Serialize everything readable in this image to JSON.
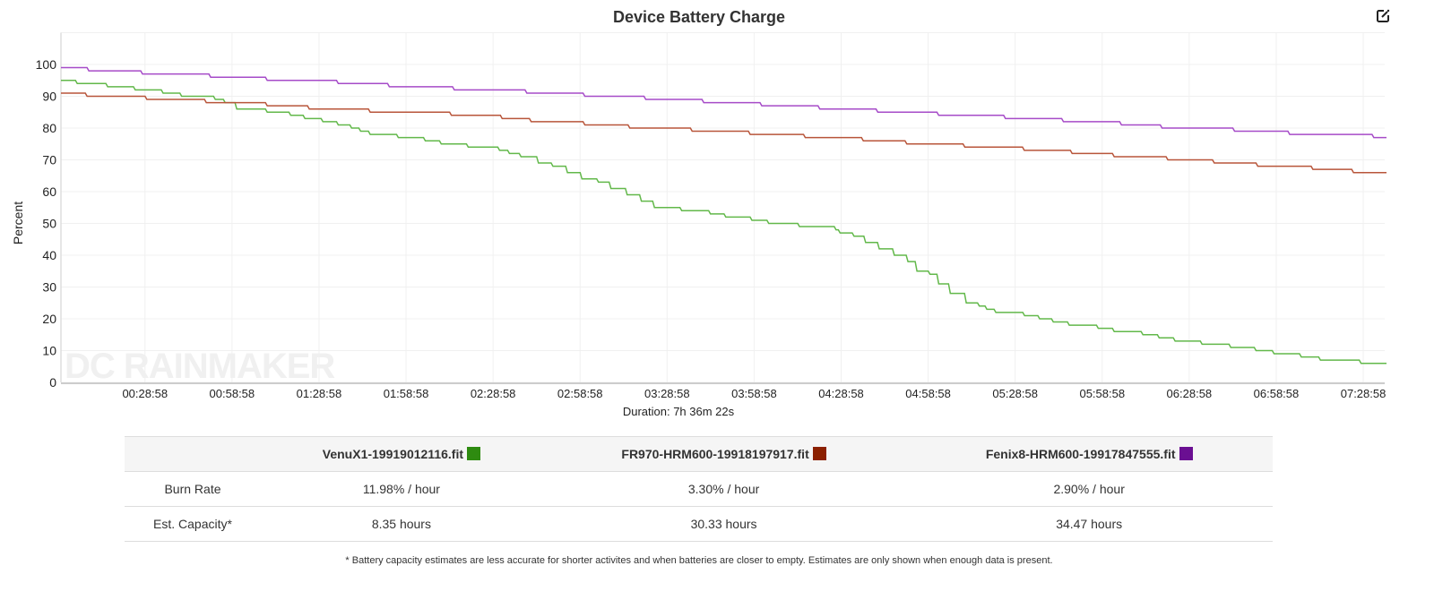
{
  "chart_data": {
    "type": "line",
    "title": "Device Battery Charge",
    "xlabel": "Duration: 7h 36m 22s",
    "ylabel": "Percent",
    "ylim": [
      0,
      110
    ],
    "xlim_minutes": [
      0,
      456.37
    ],
    "yticks": [
      0,
      10,
      20,
      30,
      40,
      50,
      60,
      70,
      80,
      90,
      100
    ],
    "xticks": [
      {
        "minute": 28.97,
        "label": "00:28:58"
      },
      {
        "minute": 58.97,
        "label": "00:58:58"
      },
      {
        "minute": 88.97,
        "label": "01:28:58"
      },
      {
        "minute": 118.97,
        "label": "01:58:58"
      },
      {
        "minute": 148.97,
        "label": "02:28:58"
      },
      {
        "minute": 178.97,
        "label": "02:58:58"
      },
      {
        "minute": 208.97,
        "label": "03:28:58"
      },
      {
        "minute": 238.97,
        "label": "03:58:58"
      },
      {
        "minute": 268.97,
        "label": "04:28:58"
      },
      {
        "minute": 298.97,
        "label": "04:58:58"
      },
      {
        "minute": 328.97,
        "label": "05:28:58"
      },
      {
        "minute": 358.97,
        "label": "05:58:58"
      },
      {
        "minute": 388.97,
        "label": "06:28:58"
      },
      {
        "minute": 418.97,
        "label": "06:58:58"
      },
      {
        "minute": 448.97,
        "label": "07:28:58"
      }
    ],
    "grid": true,
    "watermark": "DC RAINMAKER",
    "series": [
      {
        "name": "VenuX1-19919012116.fit",
        "color": "#62b84a",
        "legend_color": "#2e8b10",
        "step_points_minute_percent": [
          [
            0,
            95
          ],
          [
            5,
            94
          ],
          [
            15.5,
            93
          ],
          [
            25,
            92
          ],
          [
            34.6,
            91
          ],
          [
            41,
            90
          ],
          [
            52.6,
            89
          ],
          [
            56,
            88
          ],
          [
            60,
            86
          ],
          [
            70.5,
            85
          ],
          [
            78.6,
            84
          ],
          [
            83.5,
            83
          ],
          [
            89.7,
            82
          ],
          [
            95,
            81
          ],
          [
            99.6,
            80
          ],
          [
            102.7,
            79
          ],
          [
            106,
            78
          ],
          [
            115.7,
            77
          ],
          [
            125,
            76
          ],
          [
            130.5,
            75
          ],
          [
            139.8,
            74
          ],
          [
            150.6,
            73
          ],
          [
            154,
            72
          ],
          [
            158,
            71
          ],
          [
            164,
            69
          ],
          [
            169,
            68
          ],
          [
            174,
            66
          ],
          [
            179,
            64
          ],
          [
            184.7,
            63
          ],
          [
            189,
            61
          ],
          [
            194.6,
            59
          ],
          [
            199.5,
            57
          ],
          [
            204,
            55
          ],
          [
            213.4,
            54
          ],
          [
            223.3,
            53
          ],
          [
            228.6,
            52
          ],
          [
            237.6,
            51
          ],
          [
            243.4,
            50
          ],
          [
            254,
            49
          ],
          [
            266.6,
            48
          ],
          [
            268,
            47
          ],
          [
            272.8,
            46
          ],
          [
            276.8,
            44
          ],
          [
            281.5,
            42
          ],
          [
            286.7,
            40
          ],
          [
            291.4,
            38
          ],
          [
            294.5,
            35
          ],
          [
            299,
            34
          ],
          [
            302,
            31
          ],
          [
            306,
            28
          ],
          [
            311.5,
            25
          ],
          [
            316,
            24
          ],
          [
            318.6,
            23
          ],
          [
            321.7,
            22
          ],
          [
            331.6,
            21
          ],
          [
            336.8,
            20
          ],
          [
            341.5,
            19
          ],
          [
            347,
            18
          ],
          [
            357,
            17
          ],
          [
            362.5,
            16
          ],
          [
            372.4,
            15
          ],
          [
            378,
            14
          ],
          [
            383.5,
            13
          ],
          [
            392.8,
            12
          ],
          [
            402.7,
            11
          ],
          [
            411.4,
            10
          ],
          [
            417.6,
            9
          ],
          [
            427,
            8
          ],
          [
            433.6,
            7
          ],
          [
            447.6,
            6
          ],
          [
            456.37,
            6
          ]
        ]
      },
      {
        "name": "FR970-HRM600-19918197917.fit",
        "color": "#b8553a",
        "legend_color": "#8b2000",
        "step_points_minute_percent": [
          [
            0,
            91
          ],
          [
            8.4,
            90
          ],
          [
            29,
            89
          ],
          [
            49.5,
            88
          ],
          [
            70.5,
            87
          ],
          [
            85,
            86
          ],
          [
            106,
            85
          ],
          [
            134,
            84
          ],
          [
            151.5,
            83
          ],
          [
            161.5,
            82
          ],
          [
            180,
            81
          ],
          [
            195.5,
            80
          ],
          [
            217,
            79
          ],
          [
            237,
            78
          ],
          [
            256,
            77
          ],
          [
            276,
            76
          ],
          [
            291,
            75
          ],
          [
            311,
            74
          ],
          [
            331.5,
            73
          ],
          [
            348,
            72
          ],
          [
            362.5,
            71
          ],
          [
            381,
            70
          ],
          [
            397,
            69
          ],
          [
            412,
            68
          ],
          [
            431,
            67
          ],
          [
            445,
            66
          ],
          [
            456.37,
            66
          ]
        ]
      },
      {
        "name": "Fenix8-HRM600-19917847555.fit",
        "color": "#a64bc8",
        "legend_color": "#6a0f92",
        "step_points_minute_percent": [
          [
            0,
            99
          ],
          [
            9,
            98
          ],
          [
            27.5,
            97
          ],
          [
            51,
            96
          ],
          [
            70.5,
            95
          ],
          [
            95,
            94
          ],
          [
            112.6,
            93
          ],
          [
            135,
            92
          ],
          [
            160,
            91
          ],
          [
            180,
            90
          ],
          [
            201,
            89
          ],
          [
            221,
            88
          ],
          [
            241,
            87
          ],
          [
            261,
            86
          ],
          [
            281,
            85
          ],
          [
            302,
            84
          ],
          [
            325,
            83
          ],
          [
            345,
            82
          ],
          [
            365,
            81
          ],
          [
            379,
            80
          ],
          [
            404,
            79
          ],
          [
            423,
            78
          ],
          [
            452,
            77
          ],
          [
            456.37,
            77
          ]
        ]
      }
    ]
  },
  "table": {
    "headers": [
      "",
      "VenuX1-19919012116.fit",
      "FR970-HRM600-19918197917.fit",
      "Fenix8-HRM600-19917847555.fit"
    ],
    "rows": [
      {
        "label": "Burn Rate",
        "values": [
          "11.98% / hour",
          "3.30% / hour",
          "2.90% / hour"
        ]
      },
      {
        "label": "Est. Capacity*",
        "values": [
          "8.35 hours",
          "30.33 hours",
          "34.47 hours"
        ]
      }
    ]
  },
  "note": "* Battery capacity estimates are less accurate for shorter activites and when batteries are closer to empty. Estimates are only shown when enough data is present.",
  "icons": {
    "edit": "edit-external-icon"
  }
}
